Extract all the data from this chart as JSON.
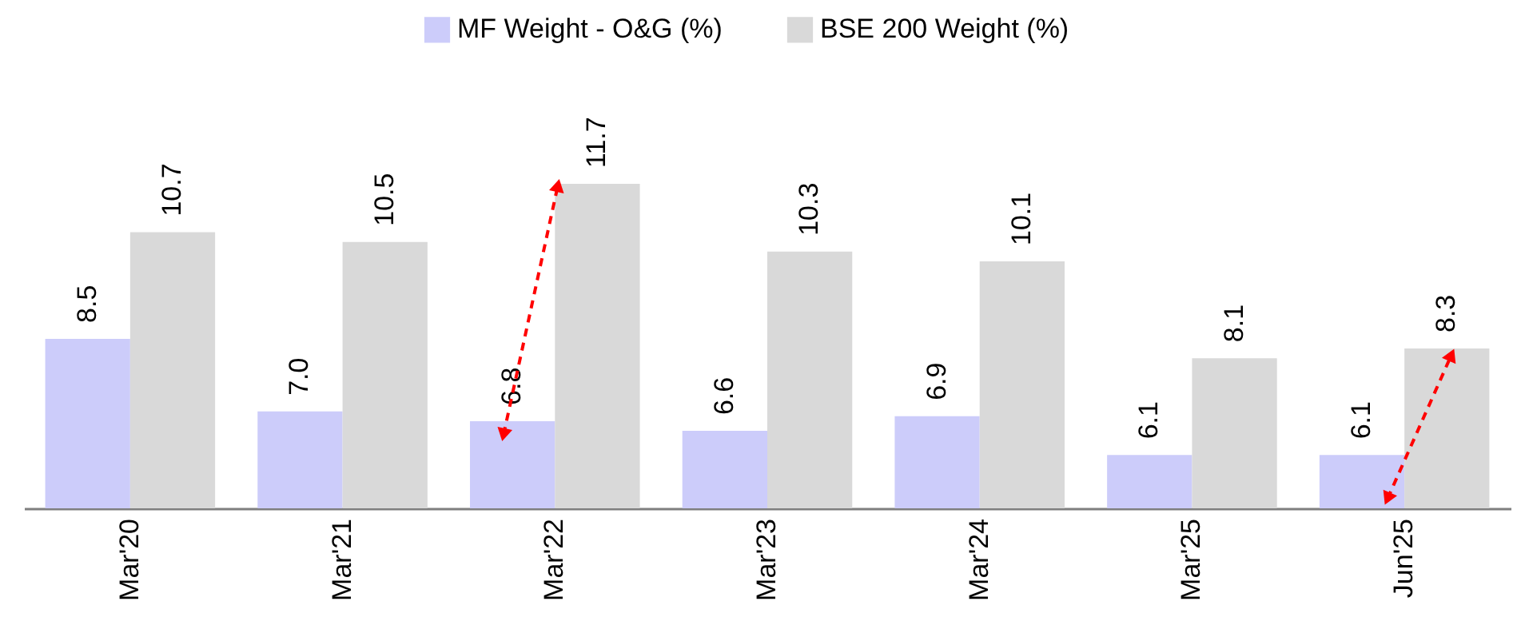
{
  "chart_data": {
    "type": "bar",
    "categories": [
      "Mar'20",
      "Mar'21",
      "Mar'22",
      "Mar'23",
      "Mar'24",
      "Mar'25",
      "Jun'25"
    ],
    "series": [
      {
        "name": "MF Weight - O&G (%)",
        "color": "#ccccfa",
        "values": [
          8.5,
          7.0,
          6.8,
          6.6,
          6.9,
          6.1,
          6.1
        ],
        "value_labels": [
          "8.5",
          "7.0",
          "6.8",
          "6.6",
          "6.9",
          "6.1",
          "6.1"
        ]
      },
      {
        "name": "BSE 200 Weight (%)",
        "color": "#d9d9d9",
        "values": [
          10.7,
          10.5,
          11.7,
          10.3,
          10.1,
          8.1,
          8.3
        ]
      }
    ],
    "ylim": [
      5,
      11.7
    ],
    "data_labels": true,
    "legend": "top",
    "grid": false,
    "tick_labels": "x"
  }
}
